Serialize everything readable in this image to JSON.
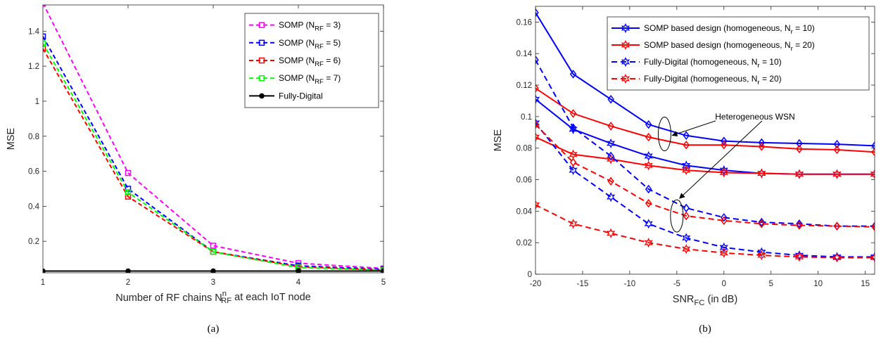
{
  "chart_data": [
    {
      "panel": "a",
      "caption": "(a)",
      "type": "line",
      "xlabel": "Number of RF chains N",
      "xlabel_sup": "n",
      "xlabel_sub": "RF",
      "xlabel_tail": " at each IoT node",
      "ylabel": "MSE",
      "xlim": [
        1,
        5
      ],
      "ylim": [
        0.02,
        1.55
      ],
      "xticks": [
        1,
        2,
        3,
        4,
        5
      ],
      "yticks": [
        0.2,
        0.4,
        0.6,
        0.8,
        1,
        1.2,
        1.4
      ],
      "ytick_labels": [
        "0.2",
        "0.4",
        "0.6",
        "0.8",
        "1",
        "1.2",
        "1.4"
      ],
      "grid": false,
      "legend_position": "top-right",
      "x": [
        1,
        2,
        3,
        4,
        5
      ],
      "series": [
        {
          "name": "SOMP  (N",
          "sub": "RF",
          "tail": " = 3)",
          "color": "#ff00ff",
          "dash": true,
          "marker": "square",
          "values": [
            1.56,
            0.59,
            0.175,
            0.075,
            0.045
          ]
        },
        {
          "name": "SOMP (N",
          "sub": "RF",
          "tail": " = 5)",
          "color": "#0000ff",
          "dash": true,
          "marker": "square",
          "values": [
            1.37,
            0.5,
            0.14,
            0.06,
            0.04
          ]
        },
        {
          "name": "SOMP (N",
          "sub": "RF",
          "tail": " = 6)",
          "color": "#ff0000",
          "dash": true,
          "marker": "square",
          "values": [
            1.3,
            0.455,
            0.14,
            0.055,
            0.035
          ]
        },
        {
          "name": "SOMP (N",
          "sub": "RF",
          "tail": " = 7)",
          "color": "#00ff00",
          "dash": true,
          "marker": "square",
          "values": [
            1.33,
            0.48,
            0.14,
            0.05,
            0.035
          ]
        },
        {
          "name": "Fully-Digital",
          "sub": "",
          "tail": "",
          "color": "#000000",
          "dash": false,
          "marker": "circle",
          "values": [
            0.03,
            0.03,
            0.03,
            0.03,
            0.03
          ]
        }
      ]
    },
    {
      "panel": "b",
      "caption": "(b)",
      "type": "line",
      "xlabel": "SNR",
      "xlabel_sub": "FC",
      "xlabel_tail": " (in dB)",
      "ylabel": "MSE",
      "xlim": [
        -20,
        16
      ],
      "ylim": [
        0,
        0.17
      ],
      "xticks": [
        -20,
        -15,
        -10,
        -5,
        0,
        5,
        10,
        15
      ],
      "yticks": [
        0,
        0.02,
        0.04,
        0.06,
        0.08,
        0.1,
        0.12,
        0.14,
        0.16
      ],
      "ytick_labels": [
        "0",
        "0.02",
        "0.04",
        "0.06",
        "0.08",
        "0.1",
        "0.12",
        "0.14",
        "0.16"
      ],
      "grid": false,
      "legend_position": "top-right",
      "x": [
        -20,
        -16,
        -12,
        -8,
        -4,
        0,
        4,
        8,
        12,
        16
      ],
      "series": [
        {
          "name": "SOMP based design (homogeneous, N",
          "sub": "r",
          "tail": " = 10)",
          "color": "#0000ff",
          "dash": false,
          "marker": "hexagram",
          "in_legend": true,
          "values": [
            0.111,
            0.092,
            0.083,
            0.075,
            0.069,
            0.066,
            0.064,
            0.0635,
            0.0635,
            0.0635
          ]
        },
        {
          "name": "SOMP based design (homogeneous, N",
          "sub": "r",
          "tail": " = 20)",
          "color": "#ff0000",
          "dash": false,
          "marker": "hexagram",
          "in_legend": true,
          "values": [
            0.087,
            0.076,
            0.073,
            0.069,
            0.066,
            0.0645,
            0.064,
            0.0635,
            0.0635,
            0.0635
          ]
        },
        {
          "name": "Fully-Digital (homogeneous, N",
          "sub": "r",
          "tail": " = 10)",
          "color": "#0000ff",
          "dash": true,
          "marker": "hexagram",
          "in_legend": true,
          "values": [
            0.096,
            0.066,
            0.049,
            0.032,
            0.023,
            0.017,
            0.014,
            0.012,
            0.011,
            0.011
          ]
        },
        {
          "name": "Fully-Digital (homogeneous, N",
          "sub": "r",
          "tail": " = 20)",
          "color": "#ff0000",
          "dash": true,
          "marker": "hexagram",
          "in_legend": true,
          "values": [
            0.044,
            0.032,
            0.026,
            0.02,
            0.016,
            0.0135,
            0.012,
            0.011,
            0.0105,
            0.0105
          ]
        },
        {
          "name": "",
          "color": "#0000ff",
          "dash": false,
          "marker": "diamond",
          "in_legend": false,
          "values": [
            0.166,
            0.127,
            0.111,
            0.095,
            0.088,
            0.0845,
            0.0835,
            0.083,
            0.0825,
            0.0815
          ]
        },
        {
          "name": "",
          "color": "#ff0000",
          "dash": false,
          "marker": "diamond",
          "in_legend": false,
          "values": [
            0.118,
            0.102,
            0.094,
            0.087,
            0.082,
            0.082,
            0.081,
            0.0795,
            0.079,
            0.0775
          ]
        },
        {
          "name": "",
          "color": "#0000ff",
          "dash": true,
          "marker": "diamond",
          "in_legend": false,
          "values": [
            0.136,
            0.093,
            0.075,
            0.054,
            0.042,
            0.036,
            0.033,
            0.032,
            0.0305,
            0.0305
          ]
        },
        {
          "name": "",
          "color": "#ff0000",
          "dash": true,
          "marker": "diamond",
          "in_legend": false,
          "values": [
            0.095,
            0.071,
            0.059,
            0.045,
            0.037,
            0.034,
            0.032,
            0.031,
            0.0305,
            0.03
          ]
        }
      ],
      "annotation": "Heterogeneous WSN"
    }
  ]
}
